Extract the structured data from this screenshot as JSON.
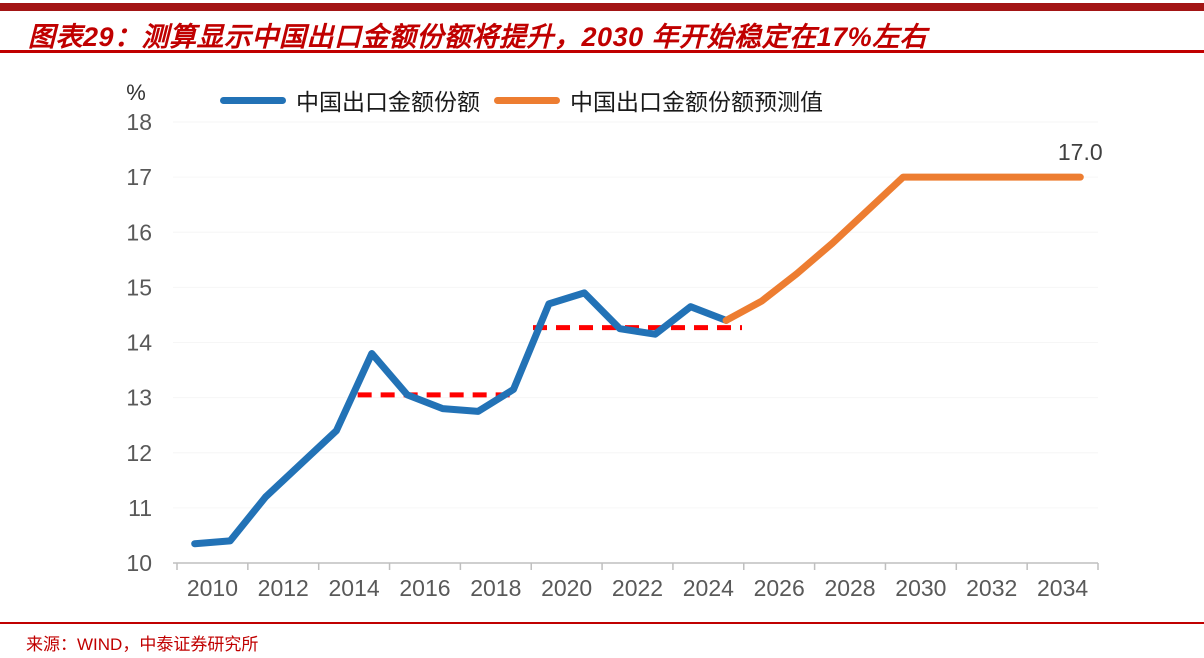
{
  "header": {
    "title": "图表29：测算显示中国出口金额份额将提升，2030 年开始稳定在17%左右"
  },
  "footer": {
    "source": "来源：WIND，中泰证券研究所"
  },
  "colors": {
    "accent_red": "#c00000",
    "actual_line": "#2272b6",
    "forecast_line": "#ed7d31",
    "dashed_reference": "#ff0000",
    "axis_labels": "#595959",
    "axis_line": "#bfbfbf",
    "data_label": "#404040"
  },
  "chart_data": {
    "type": "line",
    "title": "",
    "unit_label": "%",
    "xlabel": "",
    "ylabel": "%",
    "xlim": [
      2010,
      2035
    ],
    "ylim": [
      10,
      18
    ],
    "grid": "off",
    "legend_position": "top",
    "x_ticks": [
      2010,
      2012,
      2014,
      2016,
      2018,
      2020,
      2022,
      2024,
      2026,
      2028,
      2030,
      2032,
      2034
    ],
    "y_ticks": [
      10,
      11,
      12,
      13,
      14,
      15,
      16,
      17,
      18
    ],
    "series": [
      {
        "name": "中国出口金额份额",
        "color": "#2272b6",
        "x": [
          2010,
          2011,
          2012,
          2013,
          2014,
          2015,
          2016,
          2017,
          2018,
          2019,
          2020,
          2021,
          2022,
          2023,
          2024,
          2025
        ],
        "values": [
          10.35,
          10.4,
          11.2,
          11.8,
          12.4,
          13.8,
          13.05,
          12.8,
          12.75,
          13.15,
          14.7,
          14.9,
          14.25,
          14.15,
          14.65,
          14.4
        ]
      },
      {
        "name": "中国出口金额份额预测值",
        "color": "#ed7d31",
        "x": [
          2025,
          2026,
          2027,
          2028,
          2029,
          2030,
          2031,
          2032,
          2033,
          2034,
          2035
        ],
        "values": [
          14.4,
          14.75,
          15.25,
          15.8,
          16.4,
          17.0,
          17.0,
          17.0,
          17.0,
          17.0,
          17.0
        ]
      }
    ],
    "annotations": {
      "dashed_segments": [
        {
          "x_start": 2014.6,
          "x_end": 2019.1,
          "value": 13.05,
          "color": "#ff0000"
        },
        {
          "x_start": 2019.55,
          "x_end": 2025.45,
          "value": 14.27,
          "color": "#ff0000"
        }
      ],
      "end_label": {
        "text": "17.0",
        "x": 2035,
        "value": 17.0
      }
    }
  }
}
